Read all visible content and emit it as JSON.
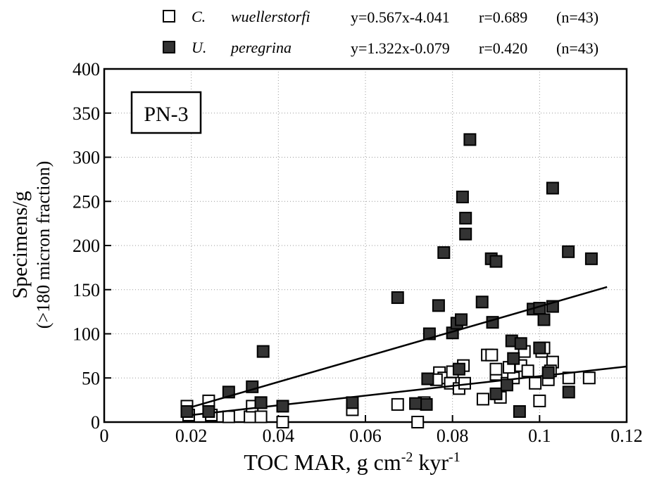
{
  "chart_data": {
    "type": "scatter",
    "annotation": "PN-3",
    "x_label": [
      "TOC MAR,  g cm",
      "-2",
      " kyr",
      "-1"
    ],
    "y_label": [
      "Specimens/g",
      "(>180 micron fraction)"
    ],
    "xlim": [
      0,
      0.12
    ],
    "ylim": [
      0,
      400
    ],
    "xticks": [
      0,
      0.02,
      0.04,
      0.06,
      0.08,
      0.1,
      0.12
    ],
    "yticks": [
      0,
      50,
      100,
      150,
      200,
      250,
      300,
      350,
      400
    ],
    "grid": true,
    "series": [
      {
        "name": [
          "C.",
          "wuellerstorfi"
        ],
        "stats": [
          "y=0.567x-4.041",
          "r=0.689",
          "(n=43)"
        ],
        "marker": "open",
        "color": "#ffffff",
        "x": [
          0.019,
          0.0194,
          0.024,
          0.0246,
          0.0286,
          0.0335,
          0.034,
          0.036,
          0.036,
          0.041,
          0.057,
          0.0674,
          0.072,
          0.0735,
          0.077,
          0.078,
          0.0795,
          0.0815,
          0.0825,
          0.0828,
          0.08,
          0.087,
          0.088,
          0.089,
          0.09,
          0.091,
          0.0925,
          0.094,
          0.0957,
          0.0965,
          0.0973,
          0.099,
          0.1,
          0.1005,
          0.101,
          0.102,
          0.103,
          0.1025,
          0.1067,
          0.1114,
          0.093,
          0.09,
          0.0763
        ],
        "values": [
          18,
          8,
          24,
          8,
          6,
          6,
          18,
          22,
          6,
          0,
          14,
          20,
          0,
          22,
          56,
          50,
          44,
          38,
          64,
          44,
          57,
          26,
          76,
          76,
          54,
          28,
          44,
          50,
          64,
          80,
          58,
          44,
          24,
          80,
          84,
          48,
          68,
          58,
          50,
          50,
          62,
          60,
          48
        ],
        "trendline": {
          "x": [
            0.02,
            0.12
          ],
          "y": [
            8,
            63
          ]
        }
      },
      {
        "name": [
          "U.",
          "peregrina"
        ],
        "stats": [
          "y=1.322x-0.079",
          "r=0.420",
          "(n=43)"
        ],
        "marker": "filled",
        "color": "#333333",
        "x": [
          0.019,
          0.024,
          0.0286,
          0.034,
          0.036,
          0.0365,
          0.041,
          0.0674,
          0.0743,
          0.0747,
          0.0768,
          0.078,
          0.08,
          0.081,
          0.082,
          0.0823,
          0.083,
          0.083,
          0.084,
          0.0868,
          0.0889,
          0.0892,
          0.09,
          0.09,
          0.0936,
          0.094,
          0.0954,
          0.0985,
          0.1,
          0.101,
          0.103,
          0.103,
          0.1066,
          0.1067,
          0.1119,
          0.074,
          0.0715,
          0.057,
          0.0815,
          0.102,
          0.0957,
          0.0925,
          0.1
        ],
        "values": [
          12,
          12,
          34,
          40,
          22,
          80,
          18,
          141,
          49,
          100,
          132,
          192,
          101,
          112,
          116,
          255,
          231,
          213,
          320,
          136,
          185,
          113,
          182,
          32,
          92,
          72,
          12,
          128,
          129,
          116,
          131,
          265,
          193,
          34,
          185,
          20,
          21,
          22,
          60,
          56,
          89,
          42,
          84
        ],
        "trendline": {
          "x": [
            0.02,
            0.1155
          ],
          "y": [
            17,
            153
          ]
        }
      }
    ]
  }
}
